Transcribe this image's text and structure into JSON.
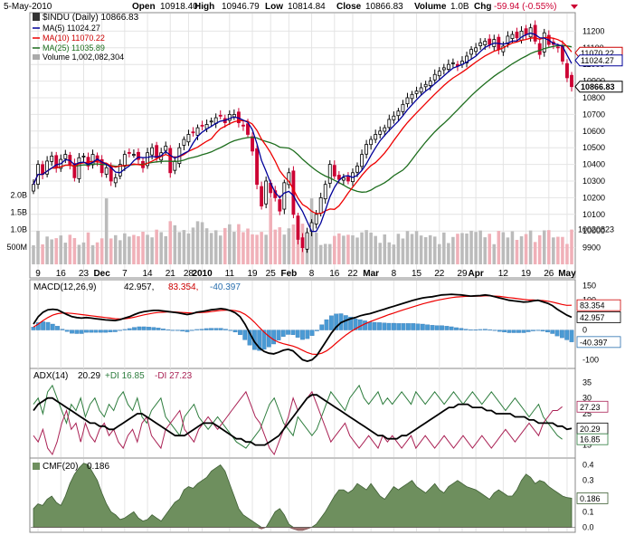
{
  "header": {
    "date": "5-May-2010",
    "open_label": "Open",
    "open": "10918.40",
    "high_label": "High",
    "high": "10946.79",
    "low_label": "Low",
    "low": "10814.84",
    "close_label": "Close",
    "close": "10866.83",
    "volume_label": "Volume",
    "volume": "1.0B",
    "chg_label": "Chg",
    "chg": "-59.94 (-0.55%)"
  },
  "legend_main": {
    "title": "$INDU (Daily) 10866.83",
    "ma5": "MA(5) 11024.27",
    "ma10": "MA(10) 11070.22",
    "ma25": "MA(25) 11035.89",
    "volume": "Volume 1,002,082,304"
  },
  "legend_macd": {
    "name": "MACD(12,26,9)",
    "v1": "42.957,",
    "v2": "83.354,",
    "v3": "-40.397"
  },
  "legend_adx": {
    "name": "ADX(14)",
    "v1": "20.29",
    "v2": "+DI 16.85",
    "v3": "-DI 27.23"
  },
  "legend_cmf": {
    "name": "CMF(20)",
    "v1": "0.186"
  },
  "colors": {
    "up": "#000000",
    "down": "#cc0033",
    "ma5": "#000099",
    "ma10": "#ee0000",
    "ma25": "#1e6e1e",
    "vol": "#bbbbbb",
    "vol_down": "#f0b0b8",
    "macd_hist": "#4a9ad4",
    "cmf": "#6e8f5e",
    "adx_plus": "#2e7d3e",
    "adx_minus": "#aa2255"
  },
  "chart_data": [
    {
      "type": "candlestick",
      "panel": "price",
      "title": "$INDU (Daily)",
      "ylim": [
        9800,
        11300
      ],
      "y_ticks": [
        9900,
        10000,
        10100,
        10200,
        10300,
        10400,
        10500,
        10600,
        10700,
        10800,
        10900,
        11000,
        11100,
        11200
      ],
      "x_tick_labels": [
        "9",
        "16",
        "23",
        "Dec",
        "7",
        "14",
        "21",
        "28",
        "2010",
        "11",
        "19",
        "25",
        "Feb",
        "8",
        "16",
        "22",
        "Mar",
        "8",
        "15",
        "22",
        "29",
        "Apr",
        "12",
        "19",
        "26",
        "May"
      ],
      "x_tick_index": [
        1,
        6,
        11,
        15,
        20,
        25,
        30,
        34,
        37,
        43,
        48,
        52,
        56,
        61,
        66,
        70,
        74,
        79,
        84,
        89,
        94,
        97,
        103,
        108,
        113,
        117
      ],
      "last_labels": [
        "11070.22",
        "11024.27",
        "10866.83"
      ],
      "close": [
        10280,
        10400,
        10340,
        10420,
        10450,
        10380,
        10430,
        10460,
        10400,
        10320,
        10440,
        10450,
        10390,
        10460,
        10420,
        10350,
        10380,
        10300,
        10320,
        10400,
        10460,
        10470,
        10460,
        10430,
        10380,
        10470,
        10500,
        10440,
        10470,
        10510,
        10350,
        10420,
        10500,
        10550,
        10580,
        10590,
        10620,
        10630,
        10640,
        10660,
        10680,
        10690,
        10650,
        10700,
        10700,
        10650,
        10630,
        10580,
        10480,
        10280,
        10150,
        10300,
        10230,
        10200,
        10120,
        10290,
        10350,
        10100,
        9950,
        9900,
        9990,
        10050,
        10100,
        10200,
        10280,
        10400,
        10330,
        10310,
        10320,
        10300,
        10350,
        10390,
        10460,
        10520,
        10550,
        10580,
        10600,
        10620,
        10670,
        10690,
        10720,
        10760,
        10800,
        10820,
        10840,
        10860,
        10880,
        10900,
        10940,
        10960,
        10980,
        11000,
        11010,
        10990,
        11020,
        11050,
        11090,
        11100,
        11130,
        11140,
        11120,
        11150,
        11090,
        11110,
        11170,
        11180,
        11160,
        11200,
        11180,
        11220,
        11140,
        11060,
        11190,
        11120,
        11120,
        11100,
        11020,
        10920,
        10867
      ],
      "volume_ticks": [
        "2.0B",
        "1.5B",
        "1.0B",
        "500M"
      ],
      "volume_last": "1002082304"
    },
    {
      "type": "line+bar",
      "panel": "macd",
      "name": "MACD(12,26,9)",
      "ylim": [
        -120,
        160
      ],
      "y_ticks": [
        150,
        100,
        50,
        0,
        -100
      ],
      "last_labels": [
        "83.354",
        "42.957",
        "-40.397"
      ],
      "macd": [
        20,
        45,
        60,
        68,
        70,
        68,
        60,
        52,
        45,
        42,
        40,
        42,
        40,
        38,
        36,
        34,
        33,
        32,
        35,
        40,
        45,
        52,
        58,
        62,
        64,
        66,
        66,
        64,
        62,
        60,
        58,
        55,
        52,
        55,
        60,
        62,
        65,
        68,
        70,
        72,
        70,
        65,
        58,
        45,
        20,
        -10,
        -40,
        -60,
        -72,
        -78,
        -80,
        -75,
        -68,
        -65,
        -70,
        -85,
        -100,
        -105,
        -100,
        -85,
        -60,
        -35,
        -10,
        10,
        25,
        32,
        38,
        42,
        48,
        52,
        55,
        60,
        65,
        70,
        75,
        80,
        85,
        90,
        95,
        100,
        104,
        108,
        110,
        112,
        115,
        118,
        119,
        120,
        119,
        118,
        116,
        114,
        115,
        116,
        118,
        116,
        112,
        108,
        104,
        100,
        98,
        96,
        94,
        95,
        98,
        100,
        95,
        90,
        82,
        70,
        60,
        50,
        43
      ],
      "signal": [
        10,
        20,
        32,
        42,
        50,
        55,
        57,
        57,
        56,
        54,
        52,
        50,
        48,
        46,
        44,
        42,
        40,
        38,
        37,
        38,
        40,
        43,
        47,
        51,
        54,
        57,
        59,
        60,
        61,
        61,
        60,
        59,
        58,
        57,
        58,
        59,
        60,
        62,
        64,
        66,
        67,
        67,
        65,
        61,
        53,
        41,
        26,
        9,
        -7,
        -21,
        -33,
        -41,
        -46,
        -50,
        -54,
        -60,
        -68,
        -76,
        -81,
        -82,
        -78,
        -70,
        -58,
        -44,
        -30,
        -17,
        -6,
        4,
        13,
        21,
        28,
        34,
        40,
        46,
        52,
        57,
        63,
        68,
        73,
        78,
        83,
        88,
        92,
        96,
        100,
        103,
        106,
        109,
        111,
        112,
        113,
        113,
        114,
        114,
        115,
        115,
        114,
        113,
        111,
        109,
        107,
        105,
        103,
        101,
        101,
        100,
        99,
        97,
        94,
        90,
        86,
        83,
        83.354
      ],
      "histogram": [
        10,
        25,
        28,
        26,
        20,
        13,
        3,
        -5,
        -11,
        -12,
        -12,
        -8,
        -8,
        -8,
        -8,
        -8,
        -7,
        -6,
        -2,
        2,
        5,
        9,
        11,
        11,
        10,
        9,
        7,
        4,
        1,
        -1,
        -2,
        -4,
        -6,
        -2,
        2,
        3,
        5,
        6,
        6,
        6,
        3,
        -2,
        -7,
        -16,
        -33,
        -51,
        -66,
        -69,
        -65,
        -57,
        -47,
        -34,
        -22,
        -15,
        -16,
        -25,
        -32,
        -29,
        -19,
        -3,
        18,
        35,
        48,
        54,
        55,
        49,
        44,
        38,
        35,
        31,
        27,
        26,
        25,
        24,
        23,
        23,
        22,
        22,
        22,
        22,
        21,
        20,
        18,
        16,
        15,
        15,
        13,
        11,
        8,
        6,
        3,
        1,
        1,
        2,
        3,
        1,
        -2,
        -5,
        -7,
        -9,
        -9,
        -9,
        -9,
        -6,
        -3,
        0,
        -4,
        -7,
        -12,
        -20,
        -26,
        -33,
        -40
      ]
    },
    {
      "type": "line",
      "panel": "adx",
      "name": "ADX(14)",
      "ylim": [
        12,
        38
      ],
      "y_ticks": [
        35,
        30,
        25,
        20,
        15
      ],
      "last_labels": [
        "27.23",
        "20.29",
        "16.85"
      ],
      "adx": [
        26,
        28,
        29,
        30,
        30,
        29,
        28,
        27,
        26,
        25,
        24,
        23,
        22,
        22,
        21,
        21,
        20,
        20,
        21,
        22,
        23,
        24,
        25,
        25,
        24,
        23,
        22,
        21,
        20,
        19,
        18,
        18,
        18,
        19,
        20,
        21,
        22,
        22,
        22,
        21,
        20,
        19,
        18,
        17,
        17,
        16,
        16,
        15,
        15,
        15,
        16,
        17,
        18,
        20,
        22,
        24,
        26,
        28,
        30,
        31,
        31,
        30,
        29,
        28,
        27,
        26,
        25,
        24,
        23,
        22,
        21,
        20,
        19,
        18,
        18,
        17,
        17,
        17,
        18,
        18,
        19,
        20,
        21,
        22,
        23,
        24,
        25,
        26,
        27,
        27,
        28,
        28,
        28,
        27,
        27,
        27,
        26,
        26,
        25,
        25,
        25,
        25,
        24,
        24,
        24,
        23,
        23,
        22,
        22,
        22,
        22,
        21,
        21,
        20,
        20.29
      ],
      "plus_di": [
        28,
        30,
        25,
        32,
        34,
        30,
        26,
        22,
        28,
        26,
        30,
        24,
        28,
        30,
        26,
        24,
        28,
        26,
        30,
        32,
        28,
        26,
        30,
        24,
        22,
        26,
        28,
        30,
        24,
        22,
        20,
        18,
        24,
        26,
        28,
        24,
        22,
        20,
        22,
        24,
        22,
        20,
        18,
        16,
        15,
        14,
        16,
        18,
        20,
        24,
        28,
        30,
        26,
        22,
        20,
        18,
        24,
        22,
        20,
        18,
        20,
        24,
        28,
        32,
        30,
        28,
        26,
        30,
        32,
        34,
        30,
        28,
        30,
        32,
        28,
        30,
        28,
        30,
        32,
        30,
        28,
        32,
        30,
        28,
        30,
        32,
        30,
        28,
        30,
        32,
        30,
        28,
        30,
        32,
        30,
        28,
        30,
        32,
        30,
        28,
        26,
        28,
        30,
        28,
        26,
        24,
        26,
        28,
        24,
        22,
        20,
        18,
        16.85
      ],
      "minus_di": [
        18,
        16,
        20,
        14,
        12,
        16,
        22,
        26,
        20,
        22,
        16,
        22,
        18,
        16,
        20,
        22,
        18,
        20,
        16,
        14,
        18,
        20,
        16,
        22,
        24,
        18,
        16,
        14,
        20,
        22,
        24,
        26,
        20,
        18,
        16,
        20,
        22,
        24,
        22,
        20,
        22,
        24,
        26,
        28,
        30,
        32,
        28,
        24,
        22,
        18,
        14,
        12,
        16,
        20,
        24,
        30,
        26,
        28,
        30,
        32,
        28,
        24,
        20,
        16,
        18,
        20,
        22,
        18,
        16,
        14,
        16,
        18,
        16,
        14,
        18,
        16,
        18,
        16,
        14,
        16,
        18,
        14,
        16,
        18,
        16,
        14,
        16,
        18,
        16,
        14,
        16,
        18,
        16,
        14,
        16,
        18,
        16,
        14,
        16,
        18,
        20,
        18,
        16,
        18,
        20,
        22,
        20,
        18,
        22,
        24,
        26,
        26,
        27.23
      ]
    },
    {
      "type": "area",
      "panel": "cmf",
      "name": "CMF(20)",
      "ylim": [
        -0.02,
        0.42
      ],
      "y_ticks": [
        0.4,
        0.3,
        0.2,
        0.1,
        0.0
      ],
      "y_tick_labels": [
        "0.4",
        "0.3",
        "0.2",
        "0.1",
        "0.0"
      ],
      "last_label": "0.186",
      "values": [
        0.12,
        0.15,
        0.14,
        0.18,
        0.2,
        0.16,
        0.14,
        0.2,
        0.28,
        0.34,
        0.38,
        0.41,
        0.4,
        0.35,
        0.3,
        0.22,
        0.15,
        0.1,
        0.08,
        0.05,
        0.06,
        0.08,
        0.1,
        0.06,
        0.04,
        0.05,
        0.08,
        0.06,
        0.04,
        0.08,
        0.12,
        0.16,
        0.18,
        0.24,
        0.26,
        0.25,
        0.28,
        0.3,
        0.32,
        0.36,
        0.38,
        0.4,
        0.36,
        0.28,
        0.2,
        0.12,
        0.08,
        0.06,
        0.04,
        0.02,
        -0.01,
        0.0,
        0.05,
        0.1,
        0.12,
        0.08,
        0.02,
        -0.01,
        -0.02,
        -0.02,
        -0.01,
        0.0,
        0.02,
        0.06,
        0.1,
        0.15,
        0.2,
        0.24,
        0.24,
        0.22,
        0.24,
        0.28,
        0.26,
        0.24,
        0.28,
        0.24,
        0.2,
        0.18,
        0.22,
        0.26,
        0.24,
        0.26,
        0.28,
        0.3,
        0.26,
        0.24,
        0.22,
        0.25,
        0.28,
        0.24,
        0.22,
        0.26,
        0.28,
        0.3,
        0.28,
        0.26,
        0.25,
        0.24,
        0.22,
        0.2,
        0.18,
        0.22,
        0.24,
        0.22,
        0.2,
        0.2,
        0.24,
        0.3,
        0.34,
        0.32,
        0.28,
        0.3,
        0.29,
        0.26,
        0.24,
        0.22,
        0.2,
        0.19,
        0.186
      ]
    }
  ]
}
